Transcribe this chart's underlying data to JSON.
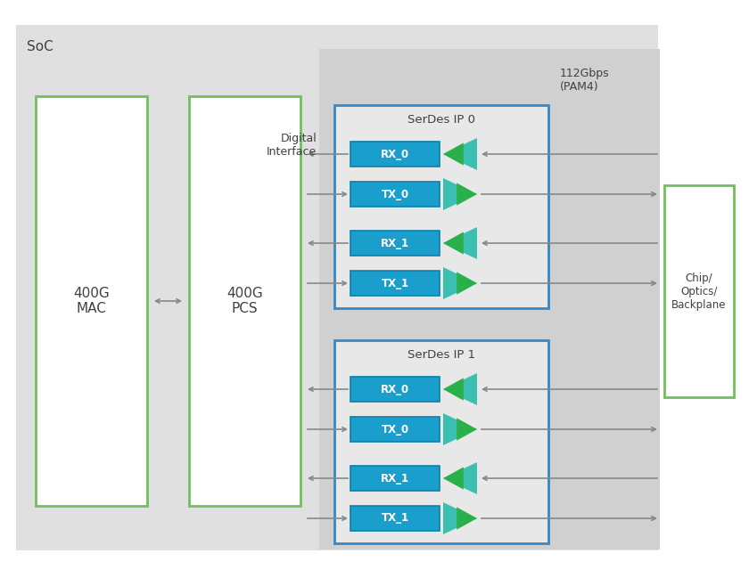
{
  "fig_width": 8.4,
  "fig_height": 6.4,
  "soc_label": "SoC",
  "mac_label": "400G\nMAC",
  "pcs_label": "400G\nPCS",
  "chip_label": "Chip/\nOptics/\nBackplane",
  "digital_interface_label": "Digital\nInterface",
  "speed_label": "112Gbps\n(PAM4)",
  "serdes0_label": "SerDes IP 0",
  "serdes1_label": "SerDes IP 1",
  "rx_tx_labels": [
    "RX_0",
    "TX_0",
    "RX_1",
    "TX_1"
  ],
  "box_blue_face": "#1a9ecb",
  "box_blue_edge": "#0d7fa8",
  "tri_color_outer": "#3bbfb0",
  "tri_color_inner": "#2ab04a",
  "border_green": "#6fc05a",
  "border_blue": "#3588c8",
  "border_blue_light": "#5baad8",
  "arrow_color": "#888888",
  "text_white": "#ffffff",
  "text_dark": "#404040",
  "soc_bg": "#e0e0e0",
  "serdes_area_bg": "#d0d0d0",
  "serdes_box_bg": "#e8e8e8",
  "white": "#ffffff"
}
